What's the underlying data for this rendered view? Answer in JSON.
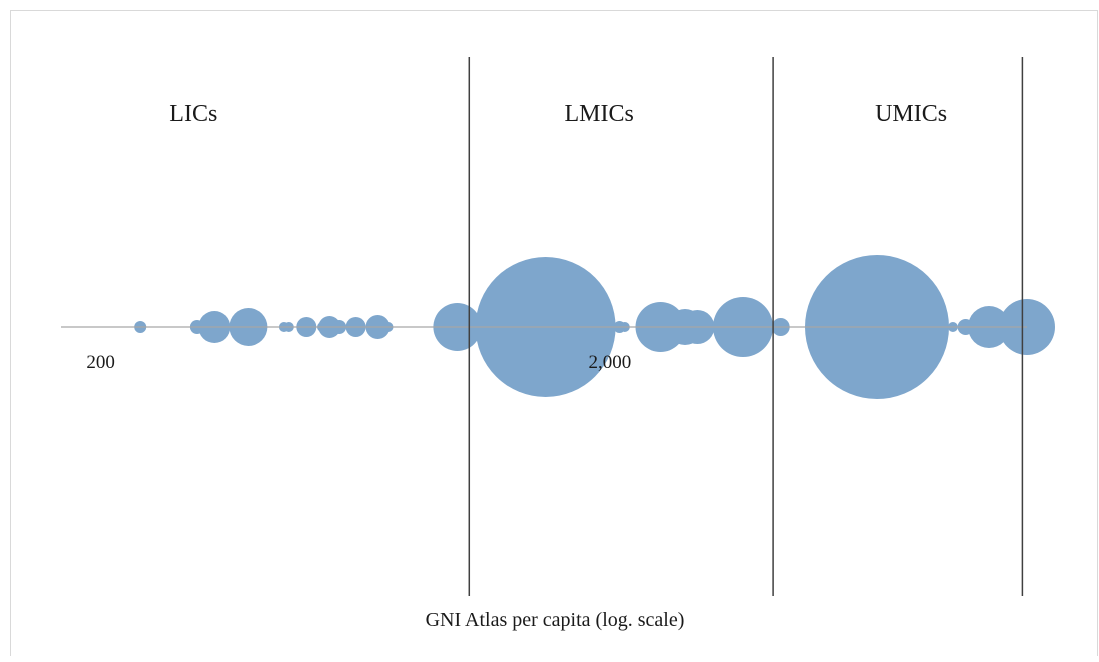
{
  "chart_data": {
    "type": "scatter",
    "title": "",
    "xlabel": "GNI Atlas per capita (log. scale)",
    "ylabel": "",
    "x_scale": "log",
    "xlim": [
      165,
      13000
    ],
    "ylim": [
      -1,
      1
    ],
    "x_ticks": [
      {
        "value": 200,
        "label": "200"
      },
      {
        "value": 2000,
        "label": "2,000"
      }
    ],
    "thresholds": [
      1045,
      4125,
      12735
    ],
    "regions": [
      {
        "label": "LICs",
        "x": 300
      },
      {
        "label": "LMICs",
        "x": 1880
      },
      {
        "label": "UMICs",
        "x": 7700
      }
    ],
    "bubble_color": "#7ea6cc",
    "line_color": "#404040",
    "axis_color": "#a6a6a6",
    "points": [
      {
        "x": 236,
        "r": 6
      },
      {
        "x": 305,
        "r": 7
      },
      {
        "x": 330,
        "r": 16
      },
      {
        "x": 385,
        "r": 19
      },
      {
        "x": 452,
        "r": 5
      },
      {
        "x": 462,
        "r": 5
      },
      {
        "x": 500,
        "r": 10
      },
      {
        "x": 537,
        "r": 5
      },
      {
        "x": 555,
        "r": 11
      },
      {
        "x": 580,
        "r": 7
      },
      {
        "x": 625,
        "r": 10
      },
      {
        "x": 690,
        "r": 12
      },
      {
        "x": 725,
        "r": 5
      },
      {
        "x": 990,
        "r": 24
      },
      {
        "x": 1125,
        "r": 12
      },
      {
        "x": 1475,
        "r": 70
      },
      {
        "x": 2060,
        "r": 6
      },
      {
        "x": 2110,
        "r": 5
      },
      {
        "x": 2480,
        "r": 25
      },
      {
        "x": 2770,
        "r": 18
      },
      {
        "x": 2930,
        "r": 17
      },
      {
        "x": 3600,
        "r": 30
      },
      {
        "x": 4270,
        "r": 9
      },
      {
        "x": 6600,
        "r": 72
      },
      {
        "x": 9300,
        "r": 5
      },
      {
        "x": 9850,
        "r": 8
      },
      {
        "x": 10950,
        "r": 21
      },
      {
        "x": 12100,
        "r": 15
      },
      {
        "x": 13000,
        "r": 28
      }
    ]
  }
}
